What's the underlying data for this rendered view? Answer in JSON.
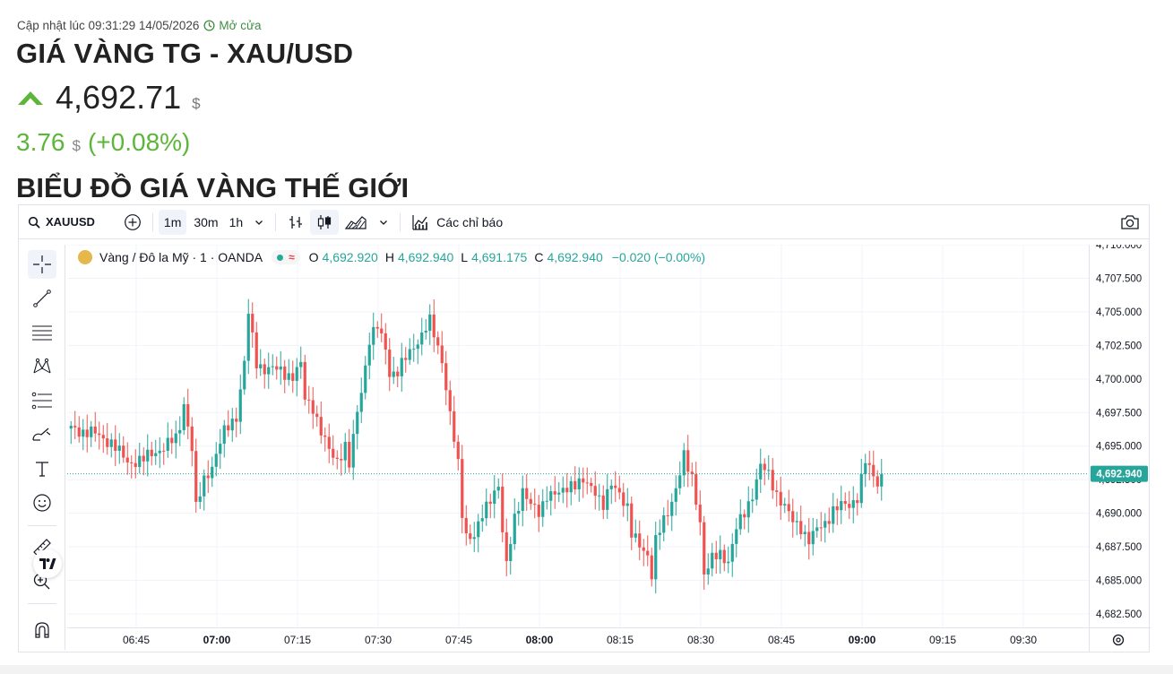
{
  "header": {
    "update_label": "Cập nhật lúc 09:31:29 14/05/2026",
    "market_status": "Mở cửa",
    "title": "GIÁ VÀNG TG - XAU/USD",
    "price": "4,692.71",
    "price_unit": "$",
    "change": "3.76",
    "change_unit": "$",
    "change_pct": "(+0.08%)",
    "chart_section_title": "BIỂU ĐỒ GIÁ VÀNG THẾ GIỚI"
  },
  "toolbar": {
    "symbol": "XAUUSD",
    "intervals": [
      "1m",
      "30m",
      "1h"
    ],
    "active_interval": "1m",
    "indicators_label": "Các chỉ báo"
  },
  "legend": {
    "name": "Vàng / Đô la Mỹ · 1 · OANDA",
    "o_label": "O",
    "o": "4,692.920",
    "h_label": "H",
    "h": "4,692.940",
    "l_label": "L",
    "l": "4,691.175",
    "c_label": "C",
    "c": "4,692.940",
    "chg": "−0.020 (−0.00%)"
  },
  "colors": {
    "up": "#26a69a",
    "down": "#ef5350",
    "accent_green": "#5db53a",
    "axis_text": "#131722",
    "grid": "#f0f3fa",
    "last_price_bg": "#26a69a"
  },
  "icons": [
    "search-icon",
    "plus-circle-icon",
    "chevron-down-icon",
    "bars-icon",
    "candles-icon",
    "area-icon",
    "indicators-icon",
    "camera-icon",
    "crosshair-icon",
    "trendline-icon",
    "fib-icon",
    "pattern-icon",
    "position-icon",
    "brush-icon",
    "text-icon",
    "emoji-icon",
    "ruler-icon",
    "zoom-icon",
    "magnet-icon",
    "settings-icon",
    "clock-icon",
    "up-arrow-icon"
  ],
  "chart_data": {
    "type": "candlestick",
    "ylim": [
      4681.5,
      4710
    ],
    "y_ticks": [
      "4,710.000",
      "4,707.500",
      "4,705.000",
      "4,702.500",
      "4,700.000",
      "4,697.500",
      "4,695.000",
      "4,692.500",
      "4,690.000",
      "4,687.500",
      "4,685.000",
      "4,682.500"
    ],
    "y_tick_values": [
      4710,
      4707.5,
      4705,
      4702.5,
      4700,
      4697.5,
      4695,
      4692.5,
      4690,
      4687.5,
      4685,
      4682.5
    ],
    "x_ticks": [
      "06:45",
      "07:00",
      "07:15",
      "07:30",
      "07:45",
      "08:00",
      "08:15",
      "08:30",
      "08:45",
      "09:00",
      "09:15",
      "09:30"
    ],
    "x_ticks_bold": [
      "07:00",
      "08:00",
      "09:00"
    ],
    "last_price_label": "4,692.940",
    "last_price": 4692.94,
    "close_keypoints": [
      [
        0,
        4696.3
      ],
      [
        5,
        4696
      ],
      [
        10,
        4695.3
      ],
      [
        12,
        4694.5
      ],
      [
        14,
        4693.8
      ],
      [
        18,
        4694
      ],
      [
        22,
        4694.8
      ],
      [
        26,
        4695.5
      ],
      [
        27,
        4696.5
      ],
      [
        28,
        4698.3
      ],
      [
        30,
        4694.8
      ],
      [
        31,
        4690.3
      ],
      [
        33,
        4692.5
      ],
      [
        35,
        4693.6
      ],
      [
        38,
        4696
      ],
      [
        41,
        4697.3
      ],
      [
        43,
        4701.2
      ],
      [
        44,
        4704.8
      ],
      [
        46,
        4701.2
      ],
      [
        48,
        4700.8
      ],
      [
        52,
        4700.6
      ],
      [
        55,
        4700.2
      ],
      [
        57,
        4701
      ],
      [
        58,
        4698.5
      ],
      [
        60,
        4698
      ],
      [
        62,
        4696
      ],
      [
        64,
        4694.6
      ],
      [
        66,
        4694
      ],
      [
        68,
        4695
      ],
      [
        69,
        4693.5
      ],
      [
        71,
        4697.5
      ],
      [
        73,
        4701
      ],
      [
        74,
        4703
      ],
      [
        76,
        4703.8
      ],
      [
        78,
        4702.3
      ],
      [
        79,
        4700.5
      ],
      [
        81,
        4700.5
      ],
      [
        83,
        4701.5
      ],
      [
        85,
        4702.5
      ],
      [
        87,
        4703.3
      ],
      [
        89,
        4704.2
      ],
      [
        90,
        4703.3
      ],
      [
        92,
        4701.5
      ],
      [
        94,
        4697.3
      ],
      [
        96,
        4693.5
      ],
      [
        97,
        4690
      ],
      [
        98,
        4688.5
      ],
      [
        100,
        4688.3
      ],
      [
        102,
        4689.7
      ],
      [
        104,
        4691.2
      ],
      [
        106,
        4692.2
      ],
      [
        107,
        4688.5
      ],
      [
        108,
        4686
      ],
      [
        110,
        4689.7
      ],
      [
        112,
        4691.8
      ],
      [
        114,
        4690.5
      ],
      [
        116,
        4690
      ],
      [
        118,
        4691.5
      ],
      [
        121,
        4691.3
      ],
      [
        124,
        4692.3
      ],
      [
        127,
        4692.2
      ],
      [
        130,
        4691.8
      ],
      [
        132,
        4690.6
      ],
      [
        134,
        4692
      ],
      [
        136,
        4691.6
      ],
      [
        138,
        4690.5
      ],
      [
        139,
        4688.4
      ],
      [
        141,
        4687.5
      ],
      [
        143,
        4687
      ],
      [
        144,
        4685.5
      ],
      [
        145,
        4688
      ],
      [
        148,
        4690
      ],
      [
        150,
        4692
      ],
      [
        152,
        4694.2
      ],
      [
        153,
        4693.2
      ],
      [
        154,
        4692.5
      ],
      [
        156,
        4689.5
      ],
      [
        157,
        4685.5
      ],
      [
        159,
        4686.5
      ],
      [
        161,
        4687
      ],
      [
        163,
        4686.5
      ],
      [
        165,
        4688.8
      ],
      [
        167,
        4690
      ],
      [
        169,
        4691.5
      ],
      [
        171,
        4693.5
      ],
      [
        173,
        4692.8
      ],
      [
        175,
        4691.5
      ],
      [
        177,
        4690.5
      ],
      [
        179,
        4689.3
      ],
      [
        181,
        4689
      ],
      [
        183,
        4688
      ],
      [
        185,
        4688.7
      ],
      [
        187,
        4689.3
      ],
      [
        189,
        4690.3
      ],
      [
        191,
        4690.5
      ],
      [
        193,
        4690.6
      ],
      [
        195,
        4691.3
      ],
      [
        197,
        4693.8
      ],
      [
        198,
        4693.2
      ],
      [
        200,
        4692.3
      ],
      [
        201,
        4692.9
      ]
    ]
  }
}
